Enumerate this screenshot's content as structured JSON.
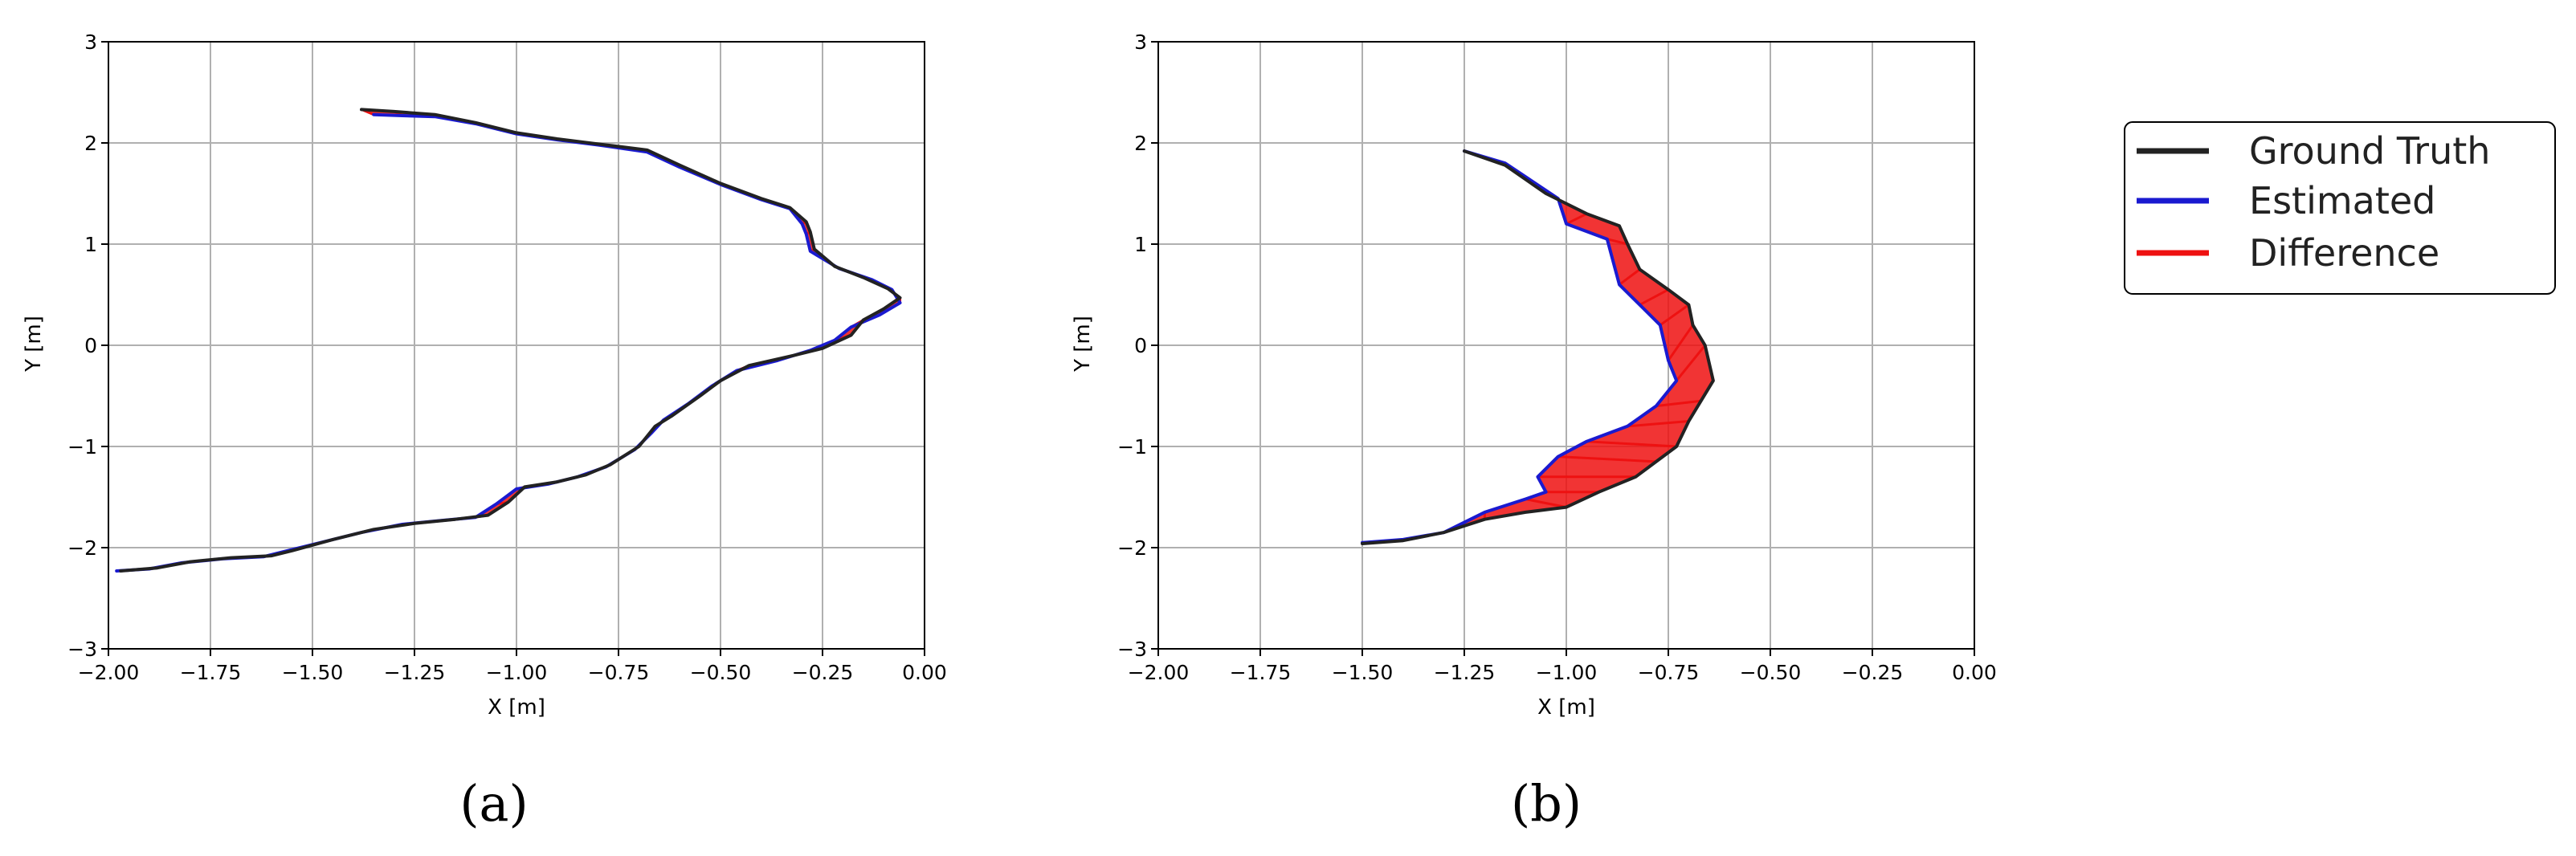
{
  "chart_data": [
    {
      "type": "line",
      "panel": "a",
      "caption": "(a)",
      "xlabel": "X [m]",
      "ylabel": "Y [m]",
      "xlim": [
        -2.0,
        0.0
      ],
      "ylim": [
        -3,
        3
      ],
      "xticks": [
        "−2.00",
        "−1.75",
        "−1.50",
        "−1.25",
        "−1.00",
        "−0.75",
        "−0.50",
        "−0.25",
        "0.00"
      ],
      "yticks": [
        "−3",
        "−2",
        "−1",
        "0",
        "1",
        "2",
        "3"
      ],
      "xtick_values": [
        -2.0,
        -1.75,
        -1.5,
        -1.25,
        -1.0,
        -0.75,
        -0.5,
        -0.25,
        0.0
      ],
      "ytick_values": [
        -3,
        -2,
        -1,
        0,
        1,
        2,
        3
      ],
      "grid": true,
      "series": [
        {
          "name": "Ground Truth",
          "color": "#222222",
          "points": [
            [
              -1.38,
              2.33
            ],
            [
              -1.3,
              2.31
            ],
            [
              -1.2,
              2.28
            ],
            [
              -1.1,
              2.2
            ],
            [
              -1.0,
              2.1
            ],
            [
              -0.9,
              2.04
            ],
            [
              -0.8,
              1.99
            ],
            [
              -0.68,
              1.93
            ],
            [
              -0.6,
              1.78
            ],
            [
              -0.5,
              1.6
            ],
            [
              -0.4,
              1.45
            ],
            [
              -0.33,
              1.36
            ],
            [
              -0.29,
              1.22
            ],
            [
              -0.28,
              1.12
            ],
            [
              -0.27,
              0.95
            ],
            [
              -0.22,
              0.78
            ],
            [
              -0.15,
              0.67
            ],
            [
              -0.09,
              0.56
            ],
            [
              -0.06,
              0.47
            ],
            [
              -0.1,
              0.36
            ],
            [
              -0.15,
              0.25
            ],
            [
              -0.18,
              0.1
            ],
            [
              -0.25,
              -0.03
            ],
            [
              -0.32,
              -0.1
            ],
            [
              -0.43,
              -0.2
            ],
            [
              -0.5,
              -0.35
            ],
            [
              -0.55,
              -0.5
            ],
            [
              -0.62,
              -0.7
            ],
            [
              -0.66,
              -0.8
            ],
            [
              -0.7,
              -1.0
            ],
            [
              -0.77,
              -1.18
            ],
            [
              -0.83,
              -1.28
            ],
            [
              -0.9,
              -1.35
            ],
            [
              -0.98,
              -1.4
            ],
            [
              -1.02,
              -1.55
            ],
            [
              -1.07,
              -1.68
            ],
            [
              -1.15,
              -1.72
            ],
            [
              -1.25,
              -1.76
            ],
            [
              -1.35,
              -1.82
            ],
            [
              -1.45,
              -1.92
            ],
            [
              -1.55,
              -2.03
            ],
            [
              -1.6,
              -2.08
            ],
            [
              -1.7,
              -2.1
            ],
            [
              -1.8,
              -2.14
            ],
            [
              -1.88,
              -2.2
            ],
            [
              -1.97,
              -2.23
            ]
          ]
        },
        {
          "name": "Estimated",
          "color": "#1a1ad0",
          "points": [
            [
              -1.35,
              2.28
            ],
            [
              -1.28,
              2.27
            ],
            [
              -1.2,
              2.26
            ],
            [
              -1.1,
              2.19
            ],
            [
              -1.0,
              2.09
            ],
            [
              -0.9,
              2.03
            ],
            [
              -0.8,
              1.98
            ],
            [
              -0.68,
              1.91
            ],
            [
              -0.6,
              1.76
            ],
            [
              -0.5,
              1.59
            ],
            [
              -0.4,
              1.44
            ],
            [
              -0.33,
              1.35
            ],
            [
              -0.3,
              1.2
            ],
            [
              -0.29,
              1.1
            ],
            [
              -0.28,
              0.93
            ],
            [
              -0.21,
              0.76
            ],
            [
              -0.13,
              0.65
            ],
            [
              -0.08,
              0.55
            ],
            [
              -0.06,
              0.42
            ],
            [
              -0.11,
              0.3
            ],
            [
              -0.18,
              0.18
            ],
            [
              -0.22,
              0.05
            ],
            [
              -0.28,
              -0.05
            ],
            [
              -0.36,
              -0.15
            ],
            [
              -0.46,
              -0.25
            ],
            [
              -0.52,
              -0.4
            ],
            [
              -0.58,
              -0.58
            ],
            [
              -0.64,
              -0.74
            ],
            [
              -0.67,
              -0.87
            ],
            [
              -0.71,
              -1.03
            ],
            [
              -0.78,
              -1.2
            ],
            [
              -0.85,
              -1.3
            ],
            [
              -0.92,
              -1.37
            ],
            [
              -1.0,
              -1.42
            ],
            [
              -1.05,
              -1.57
            ],
            [
              -1.1,
              -1.7
            ],
            [
              -1.18,
              -1.73
            ],
            [
              -1.28,
              -1.77
            ],
            [
              -1.38,
              -1.85
            ],
            [
              -1.48,
              -1.95
            ],
            [
              -1.57,
              -2.04
            ],
            [
              -1.62,
              -2.09
            ],
            [
              -1.72,
              -2.11
            ],
            [
              -1.82,
              -2.15
            ],
            [
              -1.9,
              -2.21
            ],
            [
              -1.98,
              -2.23
            ]
          ]
        }
      ]
    },
    {
      "type": "line",
      "panel": "b",
      "caption": "(b)",
      "xlabel": "X [m]",
      "ylabel": "Y [m]",
      "xlim": [
        -2.0,
        0.0
      ],
      "ylim": [
        -3,
        3
      ],
      "xticks": [
        "−2.00",
        "−1.75",
        "−1.50",
        "−1.25",
        "−1.00",
        "−0.75",
        "−0.50",
        "−0.25",
        "0.00"
      ],
      "yticks": [
        "−3",
        "−2",
        "−1",
        "0",
        "1",
        "2",
        "3"
      ],
      "xtick_values": [
        -2.0,
        -1.75,
        -1.5,
        -1.25,
        -1.0,
        -0.75,
        -0.5,
        -0.25,
        0.0
      ],
      "ytick_values": [
        -3,
        -2,
        -1,
        0,
        1,
        2,
        3
      ],
      "grid": true,
      "series": [
        {
          "name": "Ground Truth",
          "color": "#222222",
          "points": [
            [
              -1.25,
              1.92
            ],
            [
              -1.15,
              1.78
            ],
            [
              -1.05,
              1.5
            ],
            [
              -0.95,
              1.3
            ],
            [
              -0.87,
              1.18
            ],
            [
              -0.85,
              1.0
            ],
            [
              -0.82,
              0.75
            ],
            [
              -0.75,
              0.55
            ],
            [
              -0.7,
              0.4
            ],
            [
              -0.69,
              0.2
            ],
            [
              -0.66,
              0.0
            ],
            [
              -0.64,
              -0.35
            ],
            [
              -0.67,
              -0.55
            ],
            [
              -0.7,
              -0.75
            ],
            [
              -0.73,
              -1.0
            ],
            [
              -0.78,
              -1.15
            ],
            [
              -0.83,
              -1.3
            ],
            [
              -0.92,
              -1.45
            ],
            [
              -1.0,
              -1.6
            ],
            [
              -1.1,
              -1.65
            ],
            [
              -1.2,
              -1.72
            ],
            [
              -1.3,
              -1.85
            ],
            [
              -1.4,
              -1.93
            ],
            [
              -1.5,
              -1.96
            ]
          ]
        },
        {
          "name": "Estimated",
          "color": "#1a1ad0",
          "points": [
            [
              -1.25,
              1.92
            ],
            [
              -1.15,
              1.8
            ],
            [
              -1.02,
              1.45
            ],
            [
              -1.0,
              1.2
            ],
            [
              -0.9,
              1.05
            ],
            [
              -0.87,
              0.6
            ],
            [
              -0.82,
              0.4
            ],
            [
              -0.77,
              0.2
            ],
            [
              -0.75,
              -0.15
            ],
            [
              -0.73,
              -0.35
            ],
            [
              -0.78,
              -0.6
            ],
            [
              -0.85,
              -0.8
            ],
            [
              -0.95,
              -0.95
            ],
            [
              -1.02,
              -1.1
            ],
            [
              -1.07,
              -1.3
            ],
            [
              -1.05,
              -1.45
            ],
            [
              -1.1,
              -1.52
            ],
            [
              -1.2,
              -1.65
            ],
            [
              -1.3,
              -1.85
            ],
            [
              -1.4,
              -1.92
            ],
            [
              -1.5,
              -1.95
            ]
          ]
        }
      ]
    }
  ],
  "legend": {
    "placement": "right",
    "entries": [
      {
        "label": "Ground Truth",
        "color": "#222222"
      },
      {
        "label": "Estimated",
        "color": "#1a1ad0"
      },
      {
        "label": "Difference",
        "color": "#ee1111"
      }
    ]
  }
}
